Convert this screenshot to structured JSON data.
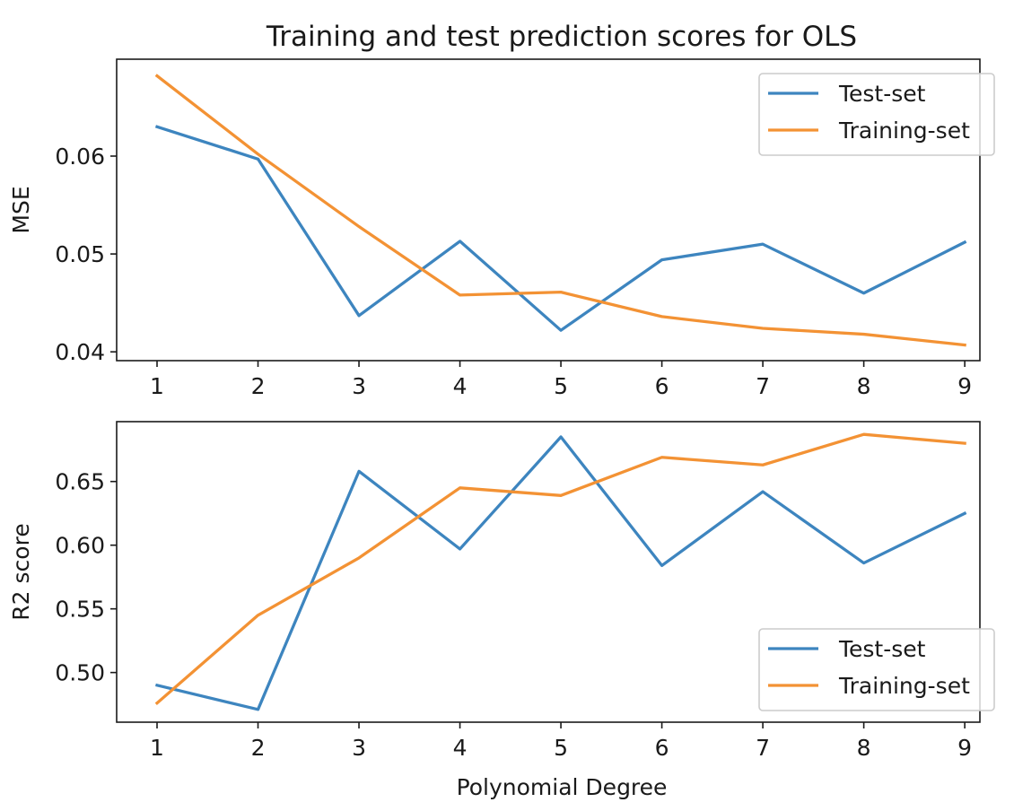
{
  "figure": {
    "title": "Training and test prediction scores for OLS",
    "xlabel": "Polynomial Degree"
  },
  "colors": {
    "test": "#3d85bf",
    "train": "#f39234",
    "axis": "#1a1a1a",
    "legend_border": "#cccccc"
  },
  "chart_data": [
    {
      "type": "line",
      "title": "Training and test prediction scores for OLS",
      "xlabel": "",
      "ylabel": "MSE",
      "x": [
        1,
        2,
        3,
        4,
        5,
        6,
        7,
        8,
        9
      ],
      "xticks": [
        "1",
        "2",
        "3",
        "4",
        "5",
        "6",
        "7",
        "8",
        "9"
      ],
      "xlim": [
        0.6,
        9.15
      ],
      "ylim": [
        0.0391,
        0.0699
      ],
      "yticks": [
        0.04,
        0.05,
        0.06
      ],
      "ytick_labels": [
        "0.04",
        "0.05",
        "0.06"
      ],
      "legend": "top-right",
      "grid": false,
      "series": [
        {
          "name": "Test-set",
          "color_key": "test",
          "values": [
            0.063,
            0.0597,
            0.0437,
            0.0513,
            0.0422,
            0.0494,
            0.051,
            0.046,
            0.0512
          ]
        },
        {
          "name": "Training-set",
          "color_key": "train",
          "values": [
            0.0682,
            0.0602,
            0.0528,
            0.0458,
            0.0461,
            0.0436,
            0.0424,
            0.0418,
            0.0407
          ]
        }
      ]
    },
    {
      "type": "line",
      "title": "",
      "xlabel": "Polynomial Degree",
      "ylabel": "R2 score",
      "x": [
        1,
        2,
        3,
        4,
        5,
        6,
        7,
        8,
        9
      ],
      "xticks": [
        "1",
        "2",
        "3",
        "4",
        "5",
        "6",
        "7",
        "8",
        "9"
      ],
      "xlim": [
        0.6,
        9.15
      ],
      "ylim": [
        0.461,
        0.697
      ],
      "yticks": [
        0.5,
        0.55,
        0.6,
        0.65
      ],
      "ytick_labels": [
        "0.50",
        "0.55",
        "0.60",
        "0.65"
      ],
      "legend": "bottom-right",
      "grid": false,
      "series": [
        {
          "name": "Test-set",
          "color_key": "test",
          "values": [
            0.49,
            0.471,
            0.658,
            0.597,
            0.685,
            0.584,
            0.642,
            0.586,
            0.625
          ]
        },
        {
          "name": "Training-set",
          "color_key": "train",
          "values": [
            0.476,
            0.545,
            0.59,
            0.645,
            0.639,
            0.669,
            0.663,
            0.687,
            0.68
          ]
        }
      ]
    }
  ]
}
